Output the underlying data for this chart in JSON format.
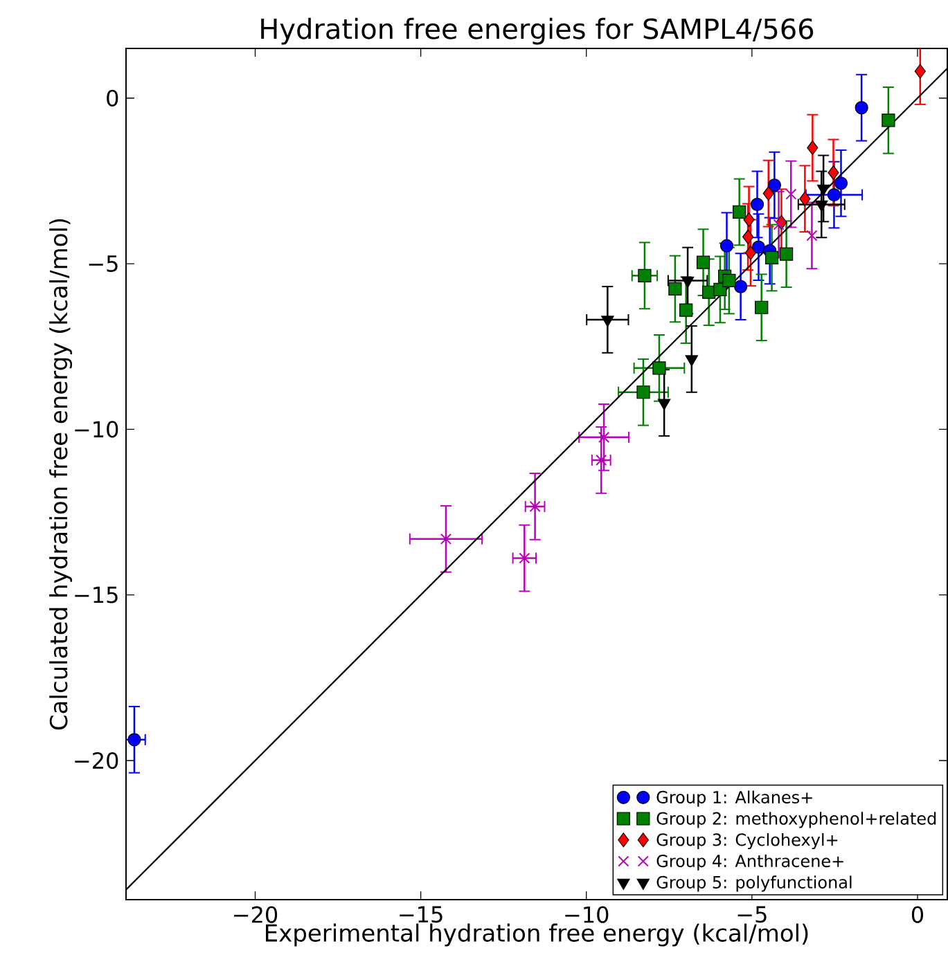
{
  "chart_data": {
    "type": "scatter",
    "title": "Hydration free energies for SAMPL4/566",
    "xlabel": "Experimental hydration free energy (kcal/mol)",
    "ylabel": "Calculated hydration free energy (kcal/mol)",
    "xlim": [
      -23.9,
      0.9
    ],
    "ylim": [
      -24.2,
      1.5
    ],
    "xticks": [
      {
        "value": -20,
        "label": "−20"
      },
      {
        "value": -15,
        "label": "−15"
      },
      {
        "value": -10,
        "label": "−10"
      },
      {
        "value": -5,
        "label": "−5"
      },
      0
    ],
    "yticks": [
      0,
      {
        "value": -5,
        "label": "−5"
      },
      {
        "value": -10,
        "label": "−10"
      },
      {
        "value": -15,
        "label": "−15"
      },
      {
        "value": -20,
        "label": "−20"
      }
    ],
    "grid": false,
    "legend": "bottom right",
    "series": [
      {
        "name": "Group 1: Alkanes+",
        "color": "#0000ff",
        "marker": "circle",
        "x": [
          -23.65,
          -1.69,
          -4.32,
          -4.84,
          -5.76,
          -4.8,
          -4.46,
          -5.34,
          -2.31,
          -2.52
        ],
        "values": [
          -19.37,
          -0.29,
          -2.63,
          -3.21,
          -4.46,
          -4.5,
          -4.61,
          -5.69,
          -2.57,
          -2.92
        ],
        "errors": [
          1,
          1,
          1,
          1,
          1,
          1,
          1,
          1,
          1,
          1
        ],
        "xerrors": [
          0.33,
          null,
          null,
          null,
          null,
          null,
          null,
          null,
          null,
          0.85
        ]
      },
      {
        "name": "Group 2: methoxyphenol+related",
        "color": "#008000",
        "marker": "square",
        "x": [
          -0.88,
          -5.38,
          -8.24,
          -7.32,
          -6.47,
          -6.99,
          -6.3,
          -5.96,
          -5.82,
          -5.69,
          -4.71,
          -4.4,
          -3.96,
          -7.8,
          -8.28
        ],
        "values": [
          -0.67,
          -3.44,
          -5.36,
          -5.76,
          -4.96,
          -6.4,
          -5.86,
          -5.78,
          -5.38,
          -5.51,
          -6.32,
          -4.82,
          -4.71,
          -8.15,
          -8.88
        ],
        "errors": [
          1,
          1,
          1,
          1,
          1,
          1,
          1,
          1,
          1,
          1,
          1,
          1,
          1,
          1,
          1
        ],
        "xerrors": [
          null,
          null,
          0.38,
          null,
          null,
          null,
          null,
          null,
          null,
          null,
          null,
          null,
          null,
          0.76,
          0.75
        ]
      },
      {
        "name": "Group 3: Cyclohexyl+",
        "color": "#ff0000",
        "marker": "diamond",
        "x": [
          0.08,
          -3.17,
          -2.54,
          -3.4,
          -4.5,
          -4.11,
          -5.09,
          -5.12,
          -5.04
        ],
        "values": [
          0.81,
          -1.5,
          -2.25,
          -3.04,
          -2.88,
          -3.75,
          -3.67,
          -4.19,
          -4.67
        ],
        "errors": [
          1,
          1,
          1,
          1,
          1,
          1,
          1,
          1,
          1
        ],
        "xerrors": [
          null,
          null,
          null,
          null,
          null,
          null,
          null,
          null,
          null
        ]
      },
      {
        "name": "Group 4: Anthracene+",
        "color": "#bf00bf",
        "marker": "cross",
        "x": [
          -3.82,
          -4.19,
          -3.19,
          -14.24,
          -11.55,
          -11.87,
          -9.47,
          -9.55
        ],
        "values": [
          -2.9,
          -3.82,
          -4.15,
          -13.31,
          -12.33,
          -13.89,
          -10.24,
          -10.93
        ],
        "errors": [
          1,
          1,
          1,
          1,
          1,
          1,
          1,
          1
        ],
        "xerrors": [
          null,
          null,
          null,
          1.09,
          0.29,
          0.35,
          0.75,
          0.28
        ]
      },
      {
        "name": "Group 5: polyfunctional",
        "color": "#000000",
        "marker": "triangle",
        "x": [
          -9.36,
          -6.94,
          -6.82,
          -7.65,
          -2.84,
          -2.9
        ],
        "values": [
          -6.69,
          -5.51,
          -7.88,
          -9.2,
          -2.73,
          -3.21
        ],
        "errors": [
          1,
          1,
          1,
          1,
          1,
          1
        ],
        "xerrors": [
          0.63,
          0.59,
          null,
          null,
          null,
          0.7
        ]
      },
      {
        "type": "line",
        "color": "#000000",
        "x": [
          -23.9,
          0.9
        ],
        "values": [
          -23.9,
          0.9
        ]
      }
    ]
  }
}
